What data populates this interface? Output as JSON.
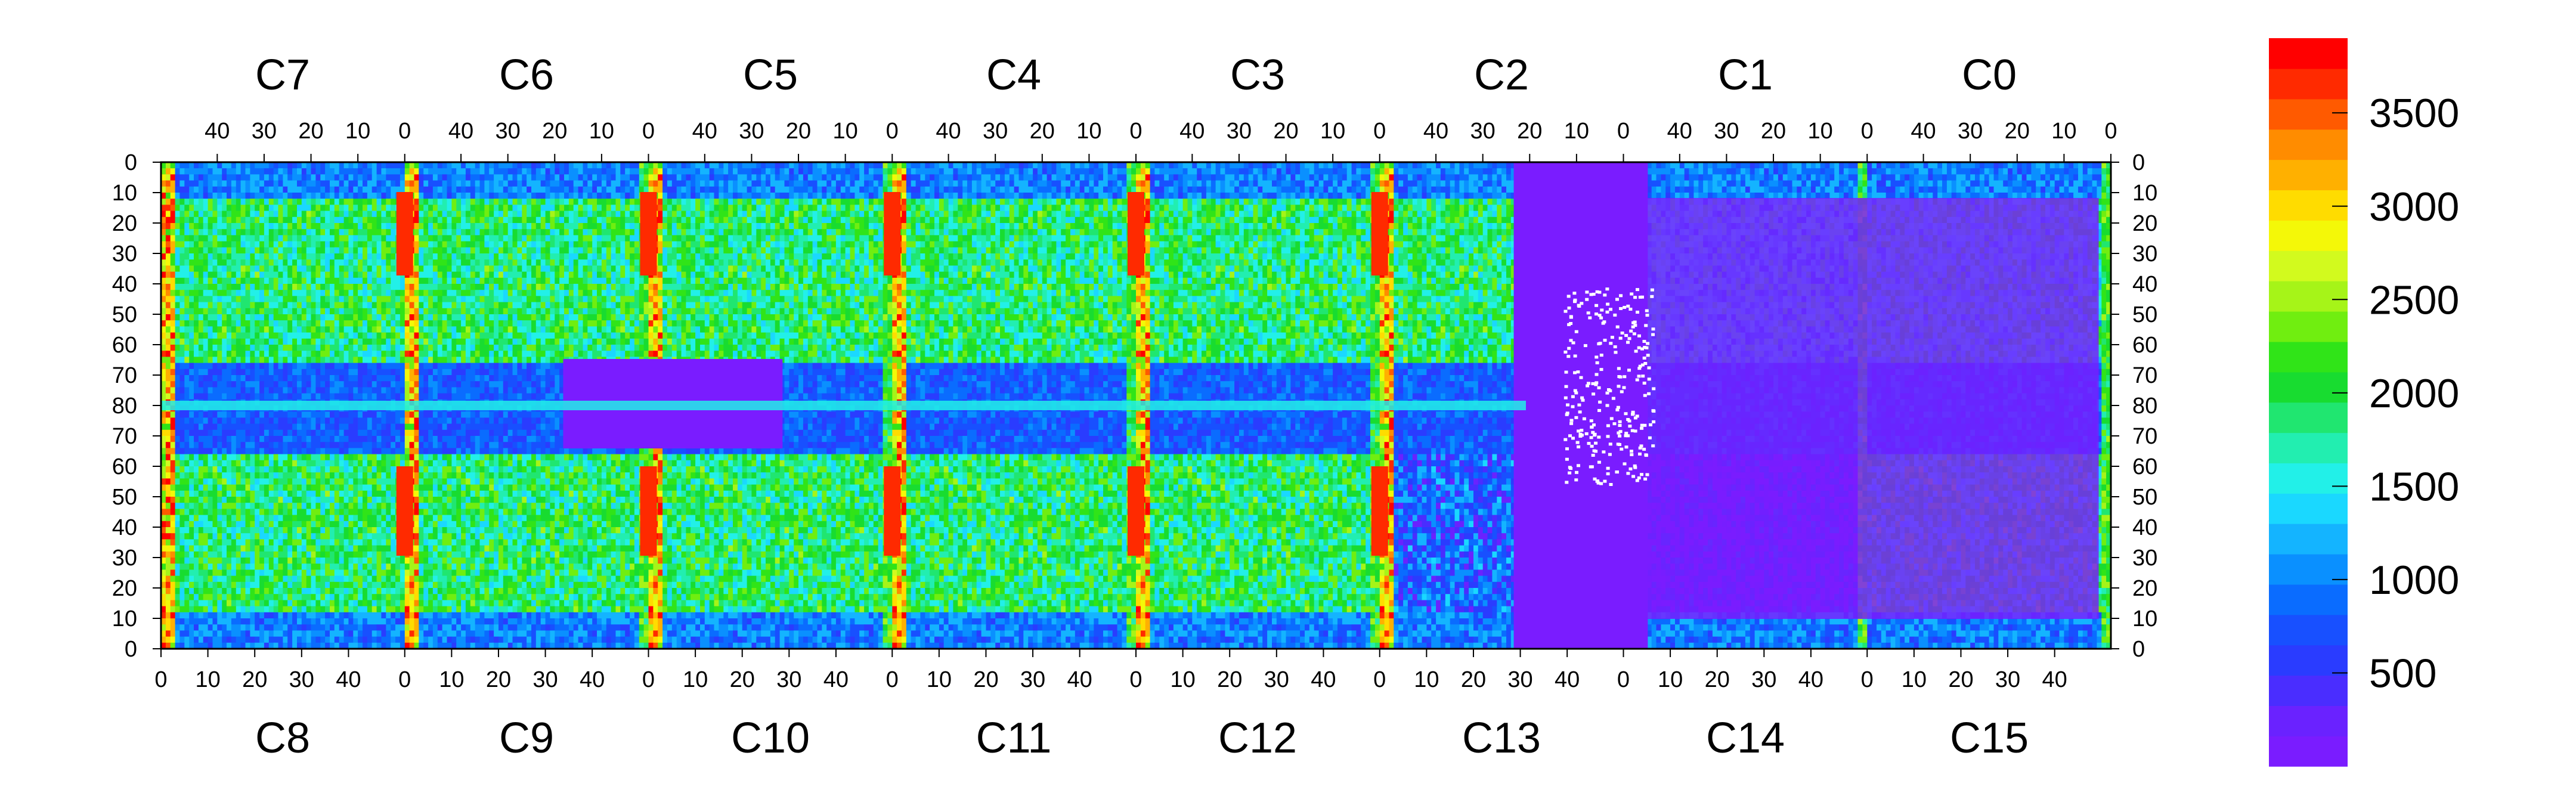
{
  "chart_data": {
    "type": "heatmap",
    "title": "",
    "xlabel": "",
    "ylabel": "",
    "top_chips": [
      "C7",
      "C6",
      "C5",
      "C4",
      "C3",
      "C2",
      "C1",
      "C0"
    ],
    "bottom_chips": [
      "C8",
      "C9",
      "C10",
      "C11",
      "C12",
      "C13",
      "C14",
      "C15"
    ],
    "top_x_ticks": [
      "40",
      "30",
      "20",
      "10",
      "0"
    ],
    "bottom_x_ticks": [
      "0",
      "10",
      "20",
      "30",
      "40"
    ],
    "left_y_ticks": [
      "0",
      "10",
      "20",
      "30",
      "40",
      "50",
      "60",
      "70",
      "80",
      "70",
      "60",
      "50",
      "40",
      "30",
      "20",
      "10",
      "0"
    ],
    "right_y_ticks": [
      "0",
      "10",
      "20",
      "30",
      "40",
      "50",
      "60",
      "70",
      "80",
      "70",
      "60",
      "50",
      "40",
      "30",
      "20",
      "10",
      "0"
    ],
    "colorbar": {
      "min": 0,
      "max": 3900,
      "ticks": [
        500,
        1000,
        1500,
        2000,
        2500,
        3000,
        3500
      ],
      "tick_labels": [
        "500",
        "1000",
        "1500",
        "2000",
        "2500",
        "3000",
        "3500"
      ],
      "colors": [
        "#7a1cff",
        "#6a22ff",
        "#4a2dff",
        "#2a3cff",
        "#1850ff",
        "#0a6cff",
        "#0a90ff",
        "#14b4ff",
        "#1ad8ff",
        "#22f0e8",
        "#22eeb0",
        "#20e670",
        "#18dc30",
        "#30e418",
        "#70ee10",
        "#a6f418",
        "#d2fa1e",
        "#f4f808",
        "#ffdc00",
        "#ffb000",
        "#ff8c00",
        "#ff5a00",
        "#ff2a00",
        "#ff0000"
      ]
    },
    "columns_per_chip": 52,
    "rows_per_half": 80,
    "value_range": [
      0,
      3900
    ]
  }
}
